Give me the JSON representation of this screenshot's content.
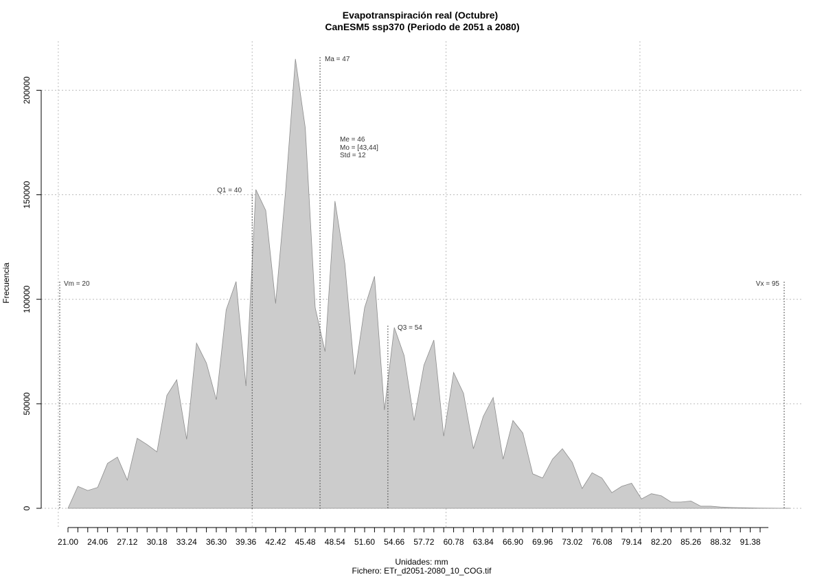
{
  "chart_data": {
    "type": "area",
    "title": "Evapotranspiración real (Octubre)",
    "subtitle": "CanESM5 ssp370 (Periodo de 2051 a 2080)",
    "xlabel": "Unidades: mm",
    "ylabel": "Frecuencia",
    "caption": "Fichero: ETr_d2051-2080_10_COG.tif",
    "xlim": [
      20,
      96.5
    ],
    "ylim": [
      0,
      215000
    ],
    "grid": true,
    "x_tick_labels": [
      "21.00",
      "24.06",
      "27.12",
      "30.18",
      "33.24",
      "36.30",
      "39.36",
      "42.42",
      "45.48",
      "48.54",
      "51.60",
      "54.66",
      "57.72",
      "60.78",
      "63.84",
      "66.90",
      "69.96",
      "73.02",
      "76.08",
      "79.14",
      "82.20",
      "85.26",
      "88.32",
      "91.38"
    ],
    "y_ticks": [
      0,
      50000,
      100000,
      150000,
      200000
    ],
    "y_tick_labels": [
      "0",
      "50000",
      "100000",
      "150000",
      "200000"
    ],
    "series": [
      {
        "x": [
          21.0,
          22.02,
          23.04,
          24.06,
          25.08,
          26.1,
          27.12,
          28.14,
          29.16,
          30.18,
          31.2,
          32.22,
          33.24,
          34.26,
          35.28,
          36.3,
          37.32,
          38.34,
          39.36,
          40.38,
          41.4,
          42.42,
          43.44,
          44.46,
          45.48,
          46.5,
          47.52,
          48.54,
          49.56,
          50.58,
          51.6,
          52.62,
          53.64,
          54.66,
          55.68,
          56.7,
          57.72,
          58.74,
          59.76,
          60.78,
          61.8,
          62.82,
          63.84,
          64.86,
          65.88,
          66.9,
          67.92,
          68.94,
          69.96,
          70.98,
          72.0,
          73.02,
          74.04,
          75.06,
          76.08,
          77.1,
          78.12,
          79.14,
          80.16,
          81.18,
          82.2,
          83.22,
          84.24,
          85.26,
          86.28,
          87.3,
          88.32,
          89.34,
          90.36,
          91.38,
          92.4,
          93.42,
          94.44,
          95.46
        ],
        "values": [
          0,
          10500,
          8500,
          10000,
          21500,
          24500,
          13500,
          33500,
          30500,
          27000,
          54000,
          61500,
          33000,
          79000,
          69500,
          52000,
          95000,
          108500,
          58500,
          152500,
          142500,
          98000,
          151500,
          215000,
          182000,
          96000,
          75000,
          147000,
          117000,
          64000,
          96000,
          111000,
          47000,
          86500,
          73000,
          42000,
          68500,
          80500,
          34500,
          65000,
          55000,
          28500,
          44000,
          53000,
          23500,
          42000,
          36000,
          16500,
          14500,
          23500,
          28500,
          22000,
          9500,
          17000,
          14500,
          7500,
          10500,
          12000,
          4500,
          7000,
          6000,
          3000,
          3000,
          3500,
          1000,
          1000,
          600,
          400,
          300,
          200,
          100,
          60,
          40,
          20
        ]
      }
    ],
    "annotations": [
      {
        "label": "Vm = 20",
        "x": 20
      },
      {
        "label": "Q1 = 40",
        "x": 40
      },
      {
        "label": "Ma = 47",
        "x": 47
      },
      {
        "label": "Q3 = 54",
        "x": 54
      },
      {
        "label": "Vx = 95",
        "x": 95
      },
      {
        "label": "Me = 46",
        "x": 46
      },
      {
        "label": "Mo = [43,44]",
        "x": 46
      },
      {
        "label": "Std = 12",
        "x": 46
      }
    ],
    "colors": {
      "fill": "#cccccc",
      "stroke": "#8c8c8c",
      "grid": "#bbbbbb",
      "refline": "#555555"
    }
  }
}
